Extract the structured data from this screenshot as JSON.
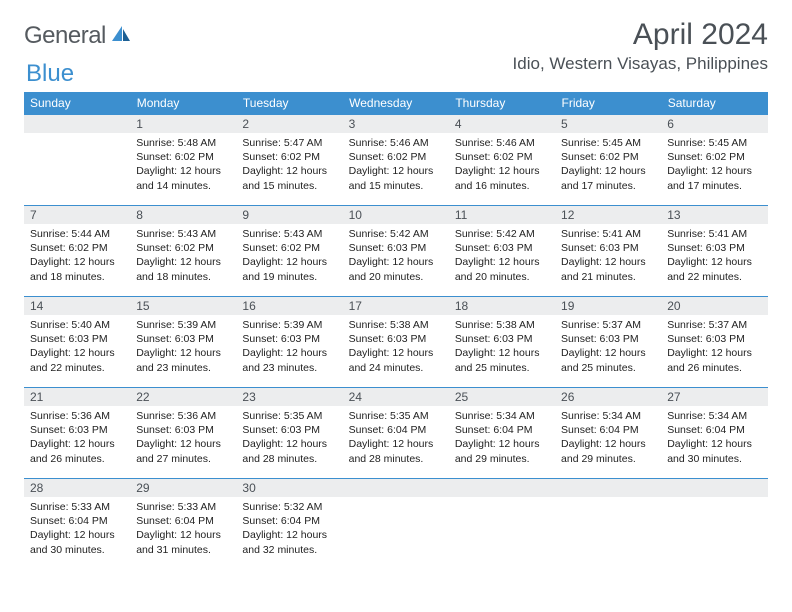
{
  "brand": {
    "part1": "General",
    "part2": "Blue"
  },
  "title": "April 2024",
  "location": "Idio, Western Visayas, Philippines",
  "colors": {
    "header_bg": "#3c8fcf",
    "header_text": "#ffffff",
    "daynum_bg": "#ecedee",
    "text": "#4a5056",
    "body_text": "#222222",
    "page_bg": "#ffffff",
    "row_divider": "#3c8fcf"
  },
  "typography": {
    "month_title_size": 30,
    "location_size": 17,
    "weekday_size": 12,
    "daynum_size": 12,
    "cell_size": 10.5
  },
  "weekdays": [
    "Sunday",
    "Monday",
    "Tuesday",
    "Wednesday",
    "Thursday",
    "Friday",
    "Saturday"
  ],
  "weeks": [
    [
      null,
      {
        "n": "1",
        "sr": "5:48 AM",
        "ss": "6:02 PM",
        "dlh": "12",
        "dlm": "14"
      },
      {
        "n": "2",
        "sr": "5:47 AM",
        "ss": "6:02 PM",
        "dlh": "12",
        "dlm": "15"
      },
      {
        "n": "3",
        "sr": "5:46 AM",
        "ss": "6:02 PM",
        "dlh": "12",
        "dlm": "15"
      },
      {
        "n": "4",
        "sr": "5:46 AM",
        "ss": "6:02 PM",
        "dlh": "12",
        "dlm": "16"
      },
      {
        "n": "5",
        "sr": "5:45 AM",
        "ss": "6:02 PM",
        "dlh": "12",
        "dlm": "17"
      },
      {
        "n": "6",
        "sr": "5:45 AM",
        "ss": "6:02 PM",
        "dlh": "12",
        "dlm": "17"
      }
    ],
    [
      {
        "n": "7",
        "sr": "5:44 AM",
        "ss": "6:02 PM",
        "dlh": "12",
        "dlm": "18"
      },
      {
        "n": "8",
        "sr": "5:43 AM",
        "ss": "6:02 PM",
        "dlh": "12",
        "dlm": "18"
      },
      {
        "n": "9",
        "sr": "5:43 AM",
        "ss": "6:02 PM",
        "dlh": "12",
        "dlm": "19"
      },
      {
        "n": "10",
        "sr": "5:42 AM",
        "ss": "6:03 PM",
        "dlh": "12",
        "dlm": "20"
      },
      {
        "n": "11",
        "sr": "5:42 AM",
        "ss": "6:03 PM",
        "dlh": "12",
        "dlm": "20"
      },
      {
        "n": "12",
        "sr": "5:41 AM",
        "ss": "6:03 PM",
        "dlh": "12",
        "dlm": "21"
      },
      {
        "n": "13",
        "sr": "5:41 AM",
        "ss": "6:03 PM",
        "dlh": "12",
        "dlm": "22"
      }
    ],
    [
      {
        "n": "14",
        "sr": "5:40 AM",
        "ss": "6:03 PM",
        "dlh": "12",
        "dlm": "22"
      },
      {
        "n": "15",
        "sr": "5:39 AM",
        "ss": "6:03 PM",
        "dlh": "12",
        "dlm": "23"
      },
      {
        "n": "16",
        "sr": "5:39 AM",
        "ss": "6:03 PM",
        "dlh": "12",
        "dlm": "23"
      },
      {
        "n": "17",
        "sr": "5:38 AM",
        "ss": "6:03 PM",
        "dlh": "12",
        "dlm": "24"
      },
      {
        "n": "18",
        "sr": "5:38 AM",
        "ss": "6:03 PM",
        "dlh": "12",
        "dlm": "25"
      },
      {
        "n": "19",
        "sr": "5:37 AM",
        "ss": "6:03 PM",
        "dlh": "12",
        "dlm": "25"
      },
      {
        "n": "20",
        "sr": "5:37 AM",
        "ss": "6:03 PM",
        "dlh": "12",
        "dlm": "26"
      }
    ],
    [
      {
        "n": "21",
        "sr": "5:36 AM",
        "ss": "6:03 PM",
        "dlh": "12",
        "dlm": "26"
      },
      {
        "n": "22",
        "sr": "5:36 AM",
        "ss": "6:03 PM",
        "dlh": "12",
        "dlm": "27"
      },
      {
        "n": "23",
        "sr": "5:35 AM",
        "ss": "6:03 PM",
        "dlh": "12",
        "dlm": "28"
      },
      {
        "n": "24",
        "sr": "5:35 AM",
        "ss": "6:04 PM",
        "dlh": "12",
        "dlm": "28"
      },
      {
        "n": "25",
        "sr": "5:34 AM",
        "ss": "6:04 PM",
        "dlh": "12",
        "dlm": "29"
      },
      {
        "n": "26",
        "sr": "5:34 AM",
        "ss": "6:04 PM",
        "dlh": "12",
        "dlm": "29"
      },
      {
        "n": "27",
        "sr": "5:34 AM",
        "ss": "6:04 PM",
        "dlh": "12",
        "dlm": "30"
      }
    ],
    [
      {
        "n": "28",
        "sr": "5:33 AM",
        "ss": "6:04 PM",
        "dlh": "12",
        "dlm": "30"
      },
      {
        "n": "29",
        "sr": "5:33 AM",
        "ss": "6:04 PM",
        "dlh": "12",
        "dlm": "31"
      },
      {
        "n": "30",
        "sr": "5:32 AM",
        "ss": "6:04 PM",
        "dlh": "12",
        "dlm": "32"
      },
      null,
      null,
      null,
      null
    ]
  ],
  "labels": {
    "sunrise": "Sunrise:",
    "sunset": "Sunset:",
    "daylight": "Daylight:",
    "hours_and": "hours",
    "and": "and",
    "minutes": "minutes."
  }
}
